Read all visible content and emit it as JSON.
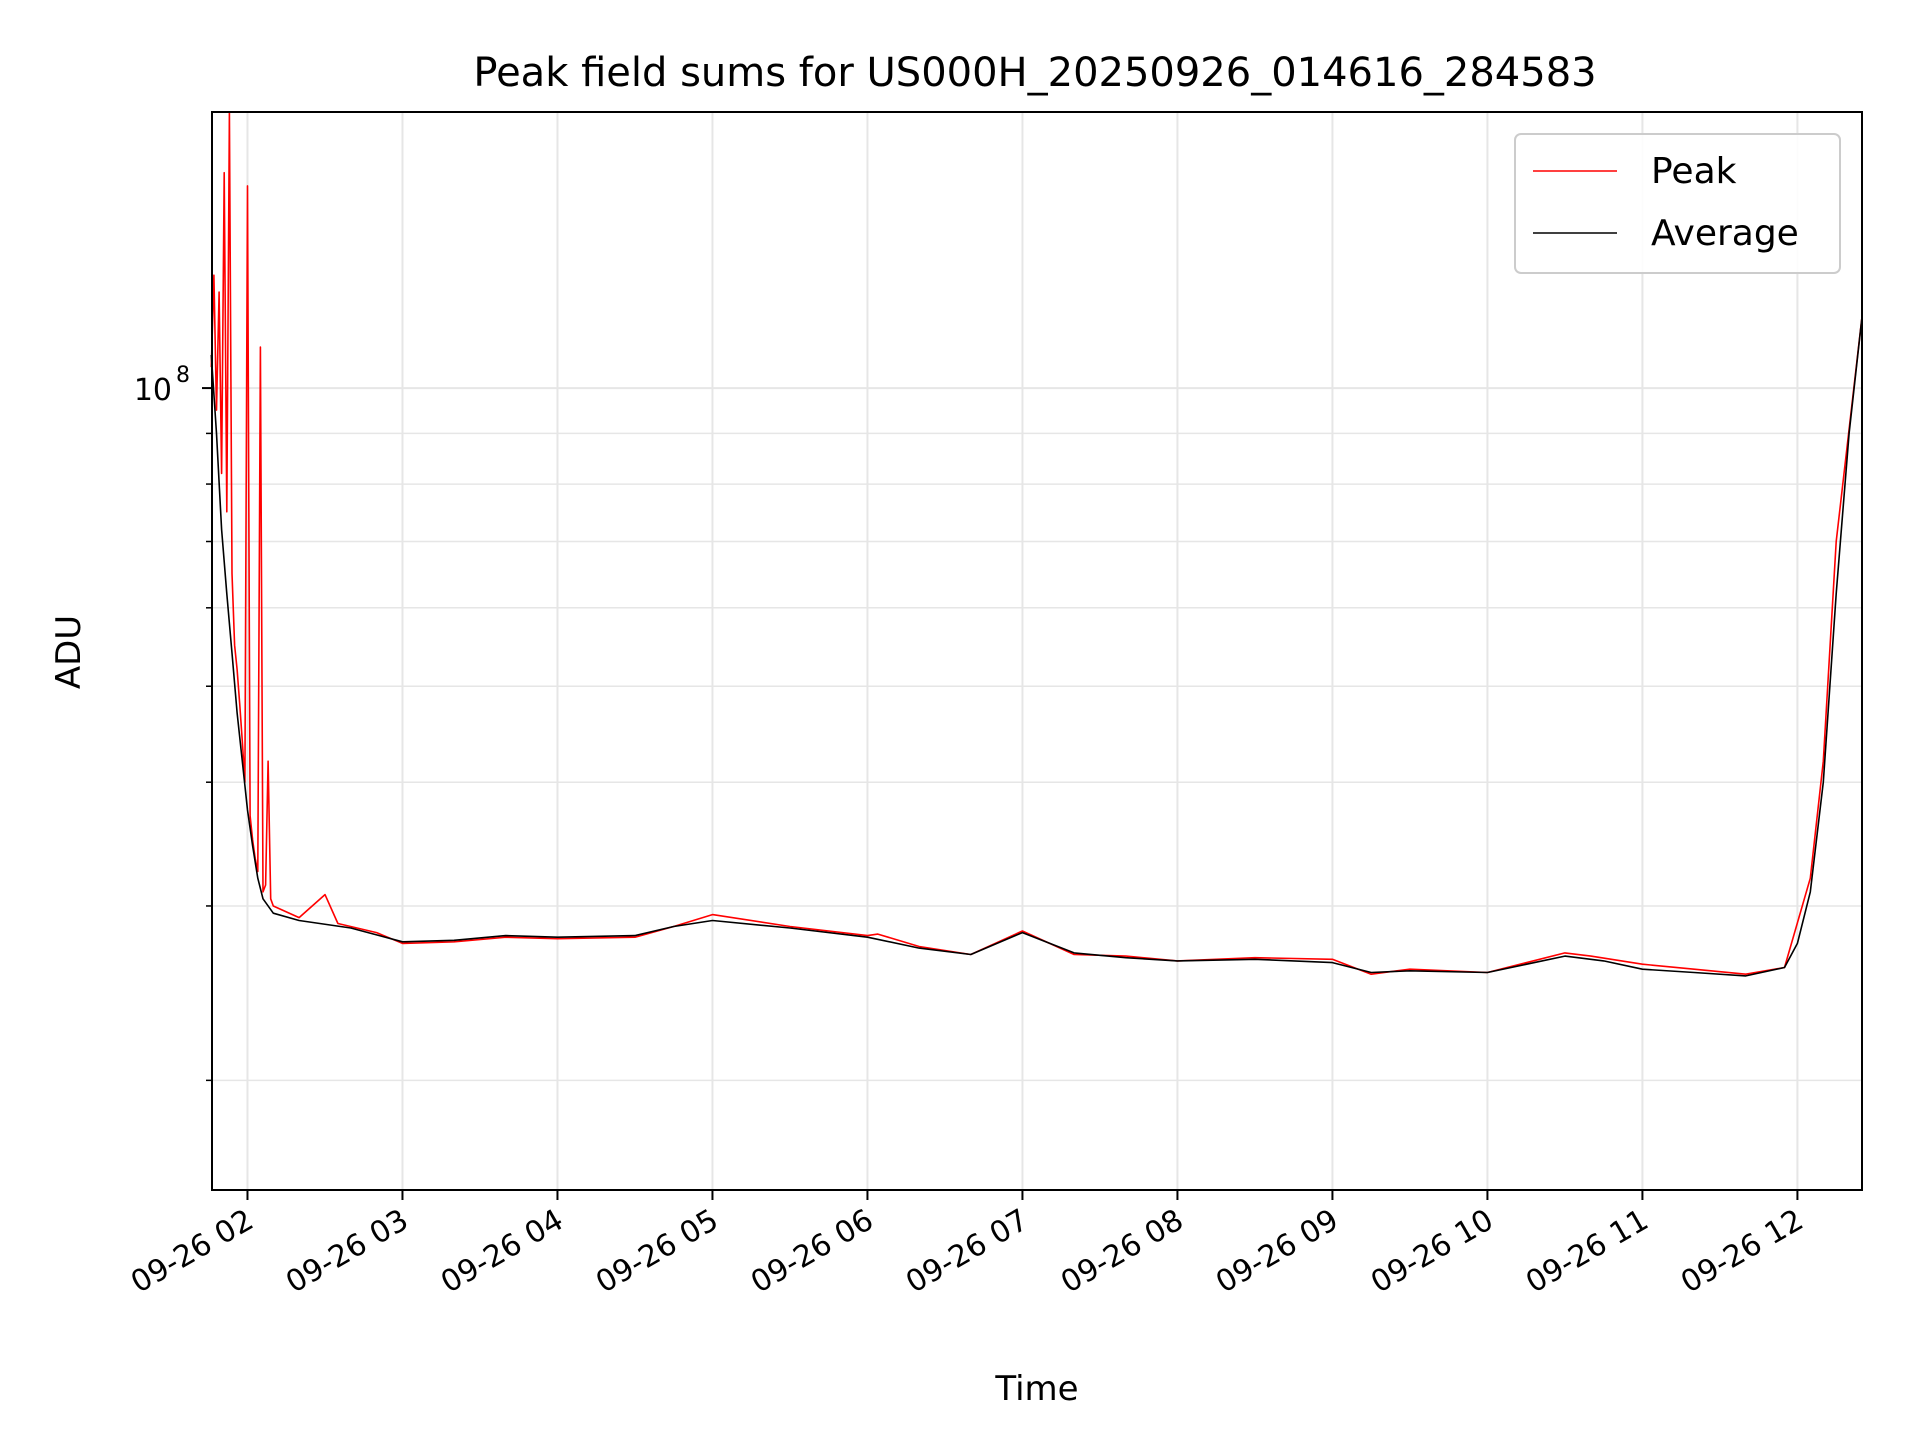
{
  "chart_data": {
    "type": "line",
    "title": "Peak field sums for US000H_20250926_014616_284583",
    "xlabel": "Time",
    "ylabel": "ADU",
    "yscale": "log",
    "xlim": [
      "09-26 01:46:16",
      "09-26 12:25"
    ],
    "ylim": [
      15500000,
      190000000
    ],
    "grid": true,
    "legend_position": "upper right",
    "x_ticks": [
      "09-26 02",
      "09-26 03",
      "09-26 04",
      "09-26 05",
      "09-26 06",
      "09-26 07",
      "09-26 08",
      "09-26 09",
      "09-26 10",
      "09-26 11",
      "09-26 12"
    ],
    "y_ticks": [
      {
        "value": 100000000,
        "base": "10",
        "exp": "8"
      }
    ],
    "colors": {
      "peak": "#ff0000",
      "average": "#000000",
      "grid": "#e6e6e6"
    },
    "series": [
      {
        "name": "Peak",
        "color": "#ff0000",
        "points": [
          [
            "01:46",
            105000000
          ],
          [
            "01:47",
            130000000
          ],
          [
            "01:48",
            95000000
          ],
          [
            "01:49",
            125000000
          ],
          [
            "01:50",
            82000000
          ],
          [
            "01:51",
            165000000
          ],
          [
            "01:52",
            75000000
          ],
          [
            "01:53",
            190000000
          ],
          [
            "01:54",
            65000000
          ],
          [
            "01:55",
            55000000
          ],
          [
            "01:56",
            52000000
          ],
          [
            "01:57",
            48000000
          ],
          [
            "01:58",
            44000000
          ],
          [
            "01:59",
            40000000
          ],
          [
            "02:00",
            160000000
          ],
          [
            "02:01",
            37000000
          ],
          [
            "02:02",
            35000000
          ],
          [
            "02:03",
            33500000
          ],
          [
            "02:04",
            32500000
          ],
          [
            "02:05",
            110000000
          ],
          [
            "02:06",
            31000000
          ],
          [
            "02:07",
            31500000
          ],
          [
            "02:08",
            42000000
          ],
          [
            "02:09",
            30500000
          ],
          [
            "02:10",
            30000000
          ],
          [
            "02:20",
            29200000
          ],
          [
            "02:30",
            30800000
          ],
          [
            "02:35",
            28800000
          ],
          [
            "02:50",
            28200000
          ],
          [
            "03:00",
            27500000
          ],
          [
            "03:20",
            27600000
          ],
          [
            "03:40",
            27900000
          ],
          [
            "04:00",
            27800000
          ],
          [
            "04:30",
            27900000
          ],
          [
            "04:45",
            28600000
          ],
          [
            "05:00",
            29400000
          ],
          [
            "05:30",
            28600000
          ],
          [
            "06:00",
            28000000
          ],
          [
            "06:04",
            28100000
          ],
          [
            "06:20",
            27300000
          ],
          [
            "06:40",
            26800000
          ],
          [
            "07:00",
            28300000
          ],
          [
            "07:20",
            26800000
          ],
          [
            "07:40",
            26700000
          ],
          [
            "08:00",
            26400000
          ],
          [
            "08:30",
            26600000
          ],
          [
            "09:00",
            26500000
          ],
          [
            "09:15",
            25600000
          ],
          [
            "09:30",
            25900000
          ],
          [
            "10:00",
            25700000
          ],
          [
            "10:30",
            26900000
          ],
          [
            "10:40",
            26700000
          ],
          [
            "11:00",
            26200000
          ],
          [
            "11:20",
            25900000
          ],
          [
            "11:40",
            25600000
          ],
          [
            "11:55",
            26000000
          ],
          [
            "12:05",
            32000000
          ],
          [
            "12:10",
            42000000
          ],
          [
            "12:15",
            70000000
          ],
          [
            "12:25",
            118000000
          ]
        ]
      },
      {
        "name": "Average",
        "color": "#000000",
        "points": [
          [
            "01:46",
            108000000
          ],
          [
            "01:48",
            90000000
          ],
          [
            "01:50",
            72000000
          ],
          [
            "01:52",
            62000000
          ],
          [
            "01:54",
            54000000
          ],
          [
            "01:56",
            47000000
          ],
          [
            "01:58",
            42000000
          ],
          [
            "02:00",
            37500000
          ],
          [
            "02:02",
            34500000
          ],
          [
            "02:04",
            32000000
          ],
          [
            "02:06",
            30500000
          ],
          [
            "02:10",
            29500000
          ],
          [
            "02:20",
            29000000
          ],
          [
            "02:40",
            28500000
          ],
          [
            "03:00",
            27600000
          ],
          [
            "03:20",
            27700000
          ],
          [
            "03:40",
            28000000
          ],
          [
            "04:00",
            27900000
          ],
          [
            "04:30",
            28000000
          ],
          [
            "04:45",
            28600000
          ],
          [
            "05:00",
            29000000
          ],
          [
            "05:30",
            28500000
          ],
          [
            "06:00",
            27900000
          ],
          [
            "06:20",
            27200000
          ],
          [
            "06:40",
            26800000
          ],
          [
            "07:00",
            28200000
          ],
          [
            "07:20",
            26900000
          ],
          [
            "07:40",
            26600000
          ],
          [
            "08:00",
            26400000
          ],
          [
            "08:30",
            26500000
          ],
          [
            "09:00",
            26300000
          ],
          [
            "09:15",
            25700000
          ],
          [
            "09:30",
            25800000
          ],
          [
            "10:00",
            25700000
          ],
          [
            "10:30",
            26700000
          ],
          [
            "10:45",
            26400000
          ],
          [
            "11:00",
            25900000
          ],
          [
            "11:20",
            25700000
          ],
          [
            "11:40",
            25500000
          ],
          [
            "11:55",
            26000000
          ],
          [
            "12:00",
            27500000
          ],
          [
            "12:05",
            31000000
          ],
          [
            "12:10",
            40000000
          ],
          [
            "12:15",
            62000000
          ],
          [
            "12:20",
            90000000
          ],
          [
            "12:25",
            118000000
          ]
        ]
      }
    ]
  }
}
